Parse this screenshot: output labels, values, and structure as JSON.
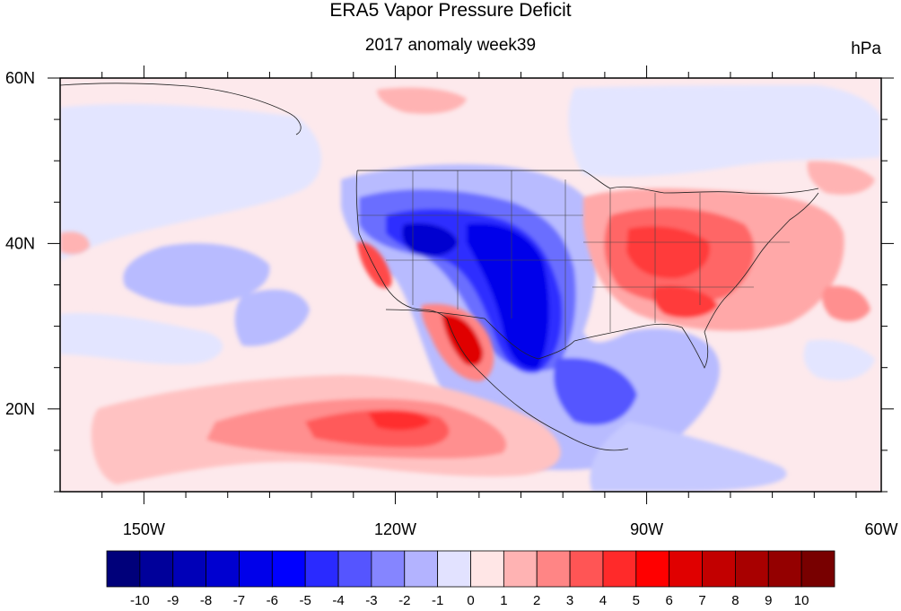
{
  "title": "ERA5 Vapor Pressure Deficit",
  "subtitle": "2017 anomaly week39",
  "units": "hPa",
  "map": {
    "lon_range": [
      -160,
      -62
    ],
    "lat_range": [
      10,
      60
    ],
    "x_ticks": [
      {
        "lon": -150,
        "label": "150W"
      },
      {
        "lon": -120,
        "label": "120W"
      },
      {
        "lon": -90,
        "label": "90W"
      },
      {
        "lon": -60,
        "label": "60W"
      }
    ],
    "y_ticks": [
      {
        "lat": 60,
        "label": "60N"
      },
      {
        "lat": 40,
        "label": "40N"
      },
      {
        "lat": 20,
        "label": "20N"
      }
    ]
  },
  "colorbar": {
    "colors": [
      "#00007a",
      "#00009a",
      "#0000b8",
      "#0000d0",
      "#0000ea",
      "#0000ff",
      "#2a2aff",
      "#5555ff",
      "#8585ff",
      "#b3b3ff",
      "#e2e2ff",
      "#ffe6e6",
      "#ffb3b3",
      "#ff8585",
      "#ff5555",
      "#ff2a2a",
      "#ff0000",
      "#e00000",
      "#c20000",
      "#a80000",
      "#940000",
      "#780000"
    ],
    "labels": [
      "-10",
      "-9",
      "-8",
      "-7",
      "-6",
      "-5",
      "-4",
      "-3",
      "-2",
      "-1",
      "0",
      "1",
      "2",
      "3",
      "4",
      "5",
      "6",
      "7",
      "8",
      "9",
      "10"
    ]
  }
}
